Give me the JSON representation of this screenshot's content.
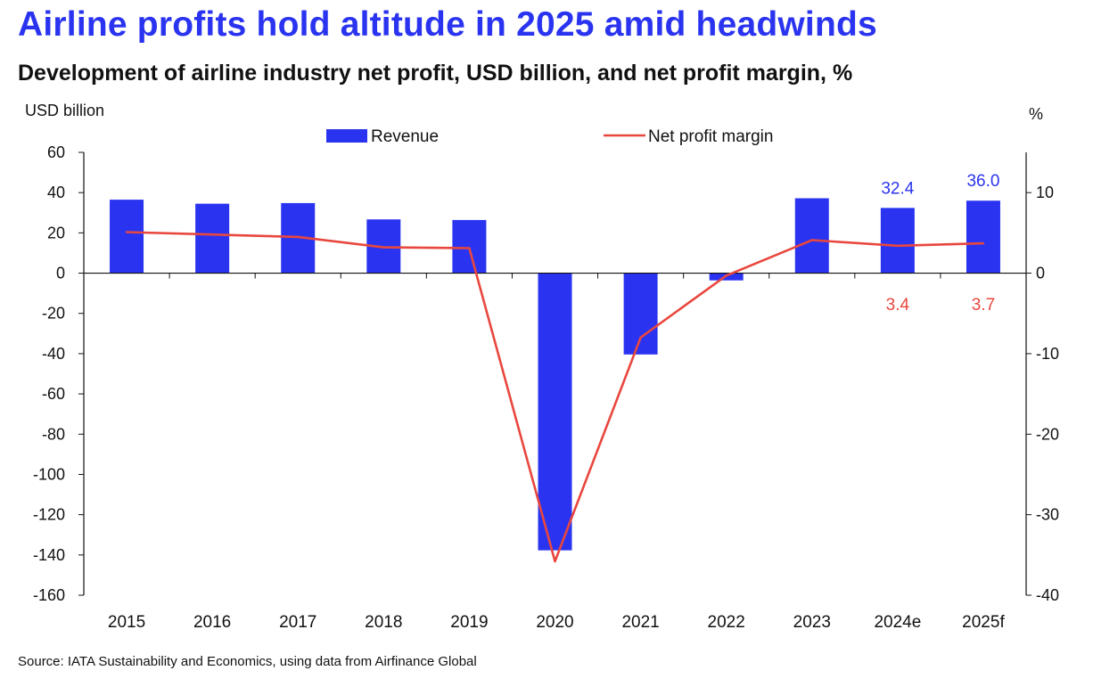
{
  "title": "Airline profits hold altitude in 2025 amid headwinds",
  "subtitle": "Development of airline industry net profit, USD billion, and net profit margin, %",
  "source": "Source: IATA Sustainability and Economics, using data from Airfinance Global",
  "colors": {
    "title": "#2a34f0",
    "bar": "#2a34f0",
    "line": "#e8473e"
  },
  "chart_data": {
    "type": "bar",
    "title": "Development of airline industry net profit, USD billion, and net profit margin, %",
    "categories": [
      "2015",
      "2016",
      "2017",
      "2018",
      "2019",
      "2020",
      "2021",
      "2022",
      "2023",
      "2024e",
      "2025f"
    ],
    "series": [
      {
        "name": "Revenue",
        "type": "bar",
        "axis": "left",
        "values": [
          36.5,
          34.5,
          34.8,
          26.7,
          26.4,
          -137.7,
          -40.4,
          -3.6,
          37.2,
          32.4,
          36.0
        ]
      },
      {
        "name": "Net profit margin",
        "type": "line",
        "axis": "right",
        "values": [
          5.1,
          4.8,
          4.5,
          3.2,
          3.1,
          -35.8,
          -8.0,
          -0.3,
          4.1,
          3.4,
          3.7
        ]
      }
    ],
    "ylabel_left": "USD billion",
    "ylabel_right": "%",
    "ylim_left": [
      -160,
      60
    ],
    "ylim_right": [
      -40,
      15
    ],
    "yticks_left": [
      60,
      40,
      20,
      0,
      -20,
      -40,
      -60,
      -80,
      -100,
      -120,
      -140,
      -160
    ],
    "yticks_left_labels": [
      "60",
      "40",
      "20",
      "0",
      "-20",
      "-40",
      "-60",
      "-80",
      "-100",
      "-120",
      "-140",
      "-160"
    ],
    "yticks_right": [
      10,
      0,
      -10,
      -20,
      -30,
      -40
    ],
    "yticks_right_labels": [
      "10",
      "0",
      "-10",
      "-20",
      "-30",
      "-40"
    ],
    "legend": [
      "Revenue",
      "Net profit margin"
    ],
    "legend_position": "top",
    "annotations": [
      {
        "category": "2024e",
        "series": "Revenue",
        "text": "32.4"
      },
      {
        "category": "2025f",
        "series": "Revenue",
        "text": "36.0"
      },
      {
        "category": "2024e",
        "series": "Net profit margin",
        "text": "3.4"
      },
      {
        "category": "2025f",
        "series": "Net profit margin",
        "text": "3.7"
      }
    ],
    "grid": false
  }
}
